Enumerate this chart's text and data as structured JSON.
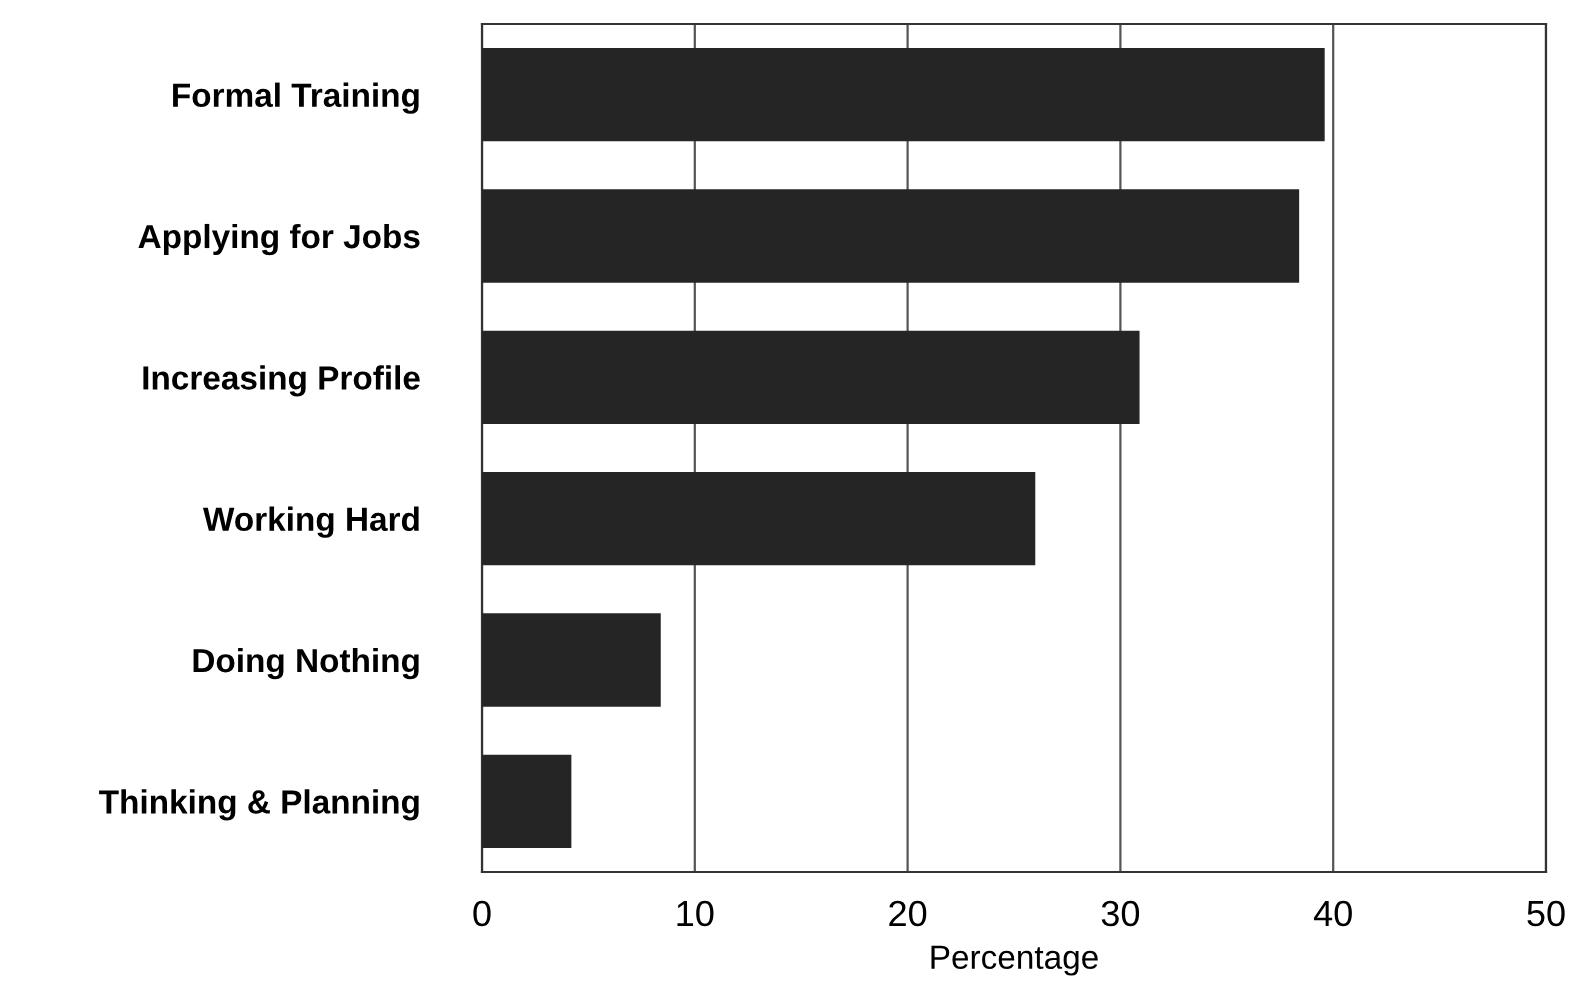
{
  "chart_data": {
    "type": "bar",
    "orientation": "horizontal",
    "xlabel": "Percentage",
    "categories": [
      "Formal Training",
      "Applying for Jobs",
      "Increasing Profile",
      "Working Hard",
      "Doing Nothing",
      "Thinking & Planning"
    ],
    "values": [
      39.6,
      38.4,
      30.9,
      26.0,
      8.4,
      4.2
    ],
    "color": "#252525",
    "xlim": [
      0,
      50
    ],
    "xticks": [
      0,
      10,
      20,
      30,
      40,
      50
    ],
    "grid": "x"
  }
}
